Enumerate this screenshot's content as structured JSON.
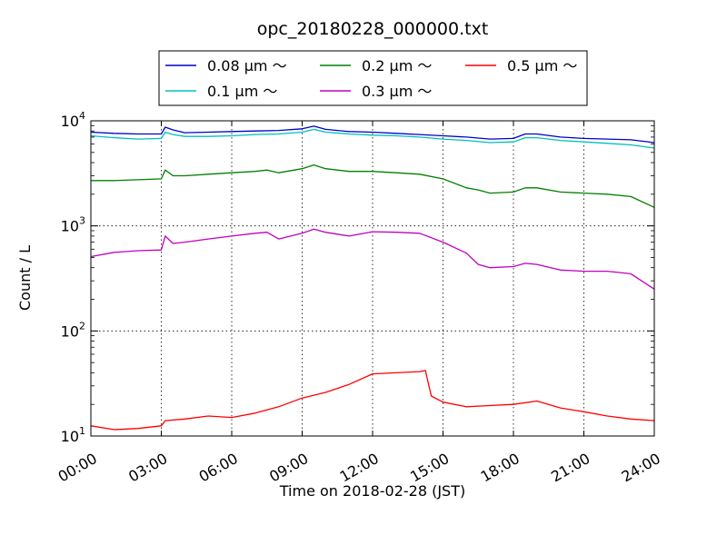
{
  "chart_data": {
    "type": "line",
    "title": "opc_20180228_000000.txt",
    "xlabel": "Time on 2018-02-28 (JST)",
    "ylabel": "Count / L",
    "y_scale": "log",
    "ylim": [
      10,
      10000
    ],
    "xlim": [
      "00:00",
      "24:00"
    ],
    "grid": true,
    "legend_position": "top-center",
    "x_ticks": [
      "00:00",
      "03:00",
      "06:00",
      "09:00",
      "12:00",
      "15:00",
      "18:00",
      "21:00",
      "24:00"
    ],
    "y_ticks": [
      {
        "base": "10",
        "exp": "1"
      },
      {
        "base": "10",
        "exp": "2"
      },
      {
        "base": "10",
        "exp": "3"
      },
      {
        "base": "10",
        "exp": "4"
      }
    ],
    "series": [
      {
        "name": "0.08 μm ～",
        "color": "#0000cc",
        "x": [
          "00:00",
          "01:00",
          "02:00",
          "03:00",
          "03:10",
          "03:30",
          "04:00",
          "05:00",
          "06:00",
          "07:00",
          "08:00",
          "09:00",
          "09:30",
          "10:00",
          "11:00",
          "12:00",
          "13:00",
          "14:00",
          "15:00",
          "16:00",
          "17:00",
          "18:00",
          "18:30",
          "19:00",
          "20:00",
          "21:00",
          "22:00",
          "23:00",
          "24:00"
        ],
        "values": [
          7800,
          7600,
          7500,
          7500,
          8700,
          8200,
          7700,
          7800,
          7900,
          8000,
          8100,
          8400,
          8900,
          8300,
          7900,
          7800,
          7600,
          7400,
          7200,
          7000,
          6700,
          6800,
          7500,
          7500,
          7000,
          6800,
          6700,
          6600,
          6200
        ]
      },
      {
        "name": "0.1 μm ～",
        "color": "#00bfbf",
        "x": [
          "00:00",
          "01:00",
          "02:00",
          "03:00",
          "03:10",
          "03:30",
          "04:00",
          "05:00",
          "06:00",
          "07:00",
          "08:00",
          "09:00",
          "09:30",
          "10:00",
          "11:00",
          "12:00",
          "13:00",
          "14:00",
          "15:00",
          "16:00",
          "17:00",
          "18:00",
          "18:30",
          "19:00",
          "20:00",
          "21:00",
          "22:00",
          "23:00",
          "24:00"
        ],
        "values": [
          7200,
          6900,
          6700,
          6800,
          7800,
          7400,
          7100,
          7100,
          7200,
          7400,
          7500,
          7800,
          8300,
          7800,
          7500,
          7300,
          7200,
          7000,
          6700,
          6500,
          6200,
          6300,
          6900,
          6900,
          6500,
          6300,
          6100,
          5900,
          5500
        ]
      },
      {
        "name": "0.2 μm ～",
        "color": "#008000",
        "x": [
          "00:00",
          "01:00",
          "02:00",
          "03:00",
          "03:10",
          "03:30",
          "04:00",
          "05:00",
          "06:00",
          "07:00",
          "07:30",
          "08:00",
          "09:00",
          "09:30",
          "10:00",
          "11:00",
          "12:00",
          "13:00",
          "14:00",
          "15:00",
          "16:00",
          "16:30",
          "17:00",
          "18:00",
          "18:30",
          "19:00",
          "20:00",
          "21:00",
          "22:00",
          "23:00",
          "24:00"
        ],
        "values": [
          2700,
          2700,
          2750,
          2800,
          3400,
          3000,
          3000,
          3100,
          3200,
          3300,
          3400,
          3200,
          3500,
          3800,
          3500,
          3300,
          3300,
          3200,
          3100,
          2800,
          2300,
          2200,
          2050,
          2100,
          2300,
          2300,
          2100,
          2050,
          2000,
          1900,
          1500
        ]
      },
      {
        "name": "0.3 μm ～",
        "color": "#bf00bf",
        "x": [
          "00:00",
          "01:00",
          "02:00",
          "03:00",
          "03:10",
          "03:30",
          "04:00",
          "05:00",
          "06:00",
          "07:00",
          "07:30",
          "08:00",
          "09:00",
          "09:30",
          "10:00",
          "11:00",
          "12:00",
          "13:00",
          "14:00",
          "15:00",
          "16:00",
          "16:30",
          "17:00",
          "18:00",
          "18:30",
          "19:00",
          "20:00",
          "21:00",
          "22:00",
          "23:00",
          "24:00"
        ],
        "values": [
          510,
          560,
          580,
          590,
          800,
          680,
          700,
          750,
          800,
          850,
          870,
          750,
          850,
          930,
          870,
          800,
          880,
          870,
          850,
          700,
          550,
          430,
          400,
          410,
          440,
          430,
          380,
          370,
          370,
          350,
          250
        ]
      },
      {
        "name": "0.5 μm ～",
        "color": "#ff0000",
        "x": [
          "00:00",
          "01:00",
          "02:00",
          "03:00",
          "03:10",
          "04:00",
          "05:00",
          "06:00",
          "07:00",
          "08:00",
          "09:00",
          "10:00",
          "11:00",
          "12:00",
          "13:00",
          "14:00",
          "14:15",
          "14:30",
          "15:00",
          "16:00",
          "17:00",
          "18:00",
          "19:00",
          "20:00",
          "21:00",
          "22:00",
          "23:00",
          "24:00"
        ],
        "values": [
          12.5,
          11.5,
          11.8,
          12.5,
          14,
          14.5,
          15.5,
          15,
          16.5,
          19,
          23,
          26,
          31,
          39,
          40,
          41,
          42,
          24,
          21,
          19,
          19.5,
          20,
          21.5,
          18.5,
          17,
          15.5,
          14.5,
          14
        ]
      }
    ]
  }
}
